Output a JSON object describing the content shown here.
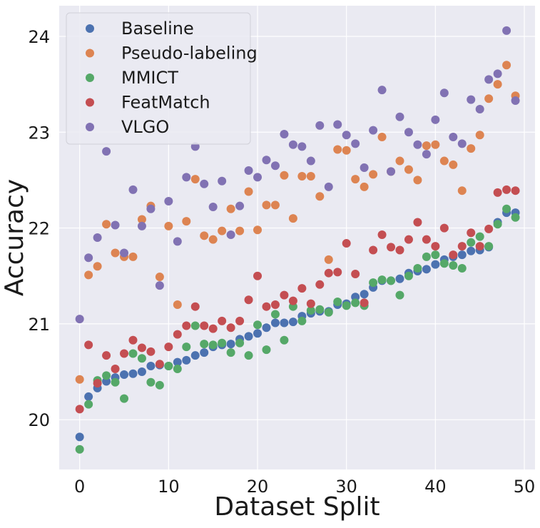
{
  "chart_data": {
    "type": "scatter",
    "xlabel": "Dataset Split",
    "ylabel": "Accuracy",
    "xlim": [
      -2.3,
      51.2
    ],
    "ylim": [
      19.48,
      24.32
    ],
    "xticks": [
      0,
      10,
      20,
      30,
      40,
      50
    ],
    "yticks": [
      20,
      21,
      22,
      23,
      24
    ],
    "grid": true,
    "legend_position": "top-left",
    "series": [
      {
        "name": "Baseline",
        "color": "#4c72b0",
        "x": [
          0,
          1,
          2,
          3,
          4,
          5,
          6,
          7,
          8,
          9,
          10,
          11,
          12,
          13,
          14,
          15,
          16,
          17,
          18,
          19,
          20,
          21,
          22,
          23,
          24,
          25,
          26,
          27,
          28,
          29,
          30,
          31,
          32,
          33,
          34,
          35,
          36,
          37,
          38,
          39,
          40,
          41,
          42,
          43,
          44,
          45,
          46,
          47,
          48,
          49
        ],
        "y": [
          19.82,
          20.24,
          20.33,
          20.4,
          20.44,
          20.47,
          20.48,
          20.5,
          20.56,
          20.57,
          20.56,
          20.6,
          20.62,
          20.67,
          20.7,
          20.76,
          20.78,
          20.79,
          20.84,
          20.87,
          20.9,
          20.96,
          21.01,
          21.01,
          21.02,
          21.08,
          21.11,
          21.13,
          21.13,
          21.2,
          21.21,
          21.28,
          21.31,
          21.38,
          21.45,
          21.45,
          21.47,
          21.53,
          21.55,
          21.57,
          21.62,
          21.67,
          21.7,
          21.72,
          21.76,
          21.77,
          21.8,
          22.06,
          22.16,
          22.16
        ]
      },
      {
        "name": "Pseudo-labeling",
        "color": "#dd8452",
        "x": [
          0,
          1,
          2,
          3,
          4,
          5,
          6,
          7,
          8,
          9,
          10,
          11,
          12,
          13,
          14,
          15,
          16,
          17,
          18,
          19,
          20,
          21,
          22,
          23,
          24,
          25,
          26,
          27,
          28,
          29,
          30,
          31,
          32,
          33,
          34,
          35,
          36,
          37,
          38,
          39,
          40,
          41,
          42,
          43,
          44,
          45,
          46,
          47,
          48,
          49
        ],
        "y": [
          20.42,
          21.51,
          21.6,
          22.04,
          21.74,
          21.7,
          21.7,
          22.09,
          22.23,
          21.49,
          22.02,
          21.2,
          22.07,
          22.51,
          21.92,
          21.88,
          21.97,
          22.2,
          21.97,
          22.38,
          21.98,
          22.24,
          22.24,
          22.55,
          22.1,
          22.54,
          22.54,
          22.33,
          21.67,
          22.82,
          22.81,
          22.51,
          22.43,
          22.56,
          22.95,
          22.59,
          22.7,
          22.61,
          22.5,
          22.86,
          22.87,
          22.7,
          22.66,
          22.39,
          22.83,
          22.97,
          23.35,
          23.5,
          23.7,
          23.38
        ]
      },
      {
        "name": "MMICT",
        "color": "#55a868",
        "x": [
          0,
          1,
          2,
          3,
          4,
          5,
          6,
          7,
          8,
          9,
          10,
          11,
          12,
          13,
          14,
          15,
          16,
          17,
          18,
          19,
          20,
          21,
          22,
          23,
          24,
          25,
          26,
          27,
          28,
          29,
          30,
          31,
          32,
          33,
          34,
          35,
          36,
          37,
          38,
          39,
          40,
          41,
          42,
          43,
          44,
          45,
          46,
          47,
          48,
          49
        ],
        "y": [
          19.69,
          20.16,
          20.41,
          20.46,
          20.39,
          20.22,
          20.69,
          20.64,
          20.39,
          20.36,
          20.56,
          20.53,
          20.76,
          20.98,
          20.79,
          20.78,
          20.8,
          20.7,
          20.8,
          20.67,
          20.99,
          20.73,
          21.1,
          20.83,
          21.18,
          21.03,
          21.14,
          21.15,
          21.12,
          21.23,
          21.19,
          21.22,
          21.19,
          21.43,
          21.46,
          21.45,
          21.3,
          21.5,
          21.58,
          21.7,
          21.72,
          21.63,
          21.61,
          21.58,
          21.85,
          21.91,
          21.81,
          22.04,
          22.2,
          22.11
        ]
      },
      {
        "name": "FeatMatch",
        "color": "#c44e52",
        "x": [
          0,
          1,
          2,
          3,
          4,
          5,
          6,
          7,
          8,
          9,
          10,
          11,
          12,
          13,
          14,
          15,
          16,
          17,
          18,
          19,
          20,
          21,
          22,
          23,
          24,
          25,
          26,
          27,
          28,
          29,
          30,
          31,
          32,
          33,
          34,
          35,
          36,
          37,
          38,
          39,
          40,
          41,
          42,
          43,
          44,
          45,
          46,
          47,
          48,
          49
        ],
        "y": [
          20.11,
          20.78,
          20.38,
          20.67,
          20.53,
          20.69,
          20.83,
          20.75,
          20.71,
          20.58,
          20.76,
          20.89,
          20.98,
          21.18,
          20.98,
          20.95,
          21.03,
          20.96,
          21.03,
          21.25,
          21.5,
          21.18,
          21.2,
          21.3,
          21.24,
          21.37,
          21.21,
          21.41,
          21.53,
          21.54,
          21.84,
          21.52,
          21.22,
          21.77,
          21.93,
          21.8,
          21.77,
          21.88,
          22.06,
          21.88,
          21.81,
          22.0,
          21.72,
          21.81,
          21.95,
          21.81,
          21.99,
          22.37,
          22.4,
          22.39
        ]
      },
      {
        "name": "VLGO",
        "color": "#8172b3",
        "x": [
          0,
          1,
          2,
          3,
          4,
          5,
          6,
          7,
          8,
          9,
          10,
          11,
          12,
          13,
          14,
          15,
          16,
          17,
          18,
          19,
          20,
          21,
          22,
          23,
          24,
          25,
          26,
          27,
          28,
          29,
          30,
          31,
          32,
          33,
          34,
          35,
          36,
          37,
          38,
          39,
          40,
          41,
          42,
          43,
          44,
          45,
          46,
          47,
          48,
          49
        ],
        "y": [
          21.05,
          21.69,
          21.9,
          22.8,
          22.03,
          21.74,
          22.4,
          22.02,
          22.2,
          21.4,
          22.28,
          21.86,
          22.53,
          22.85,
          22.46,
          22.22,
          22.49,
          21.93,
          22.23,
          22.6,
          22.53,
          22.71,
          22.65,
          22.98,
          22.87,
          22.85,
          22.7,
          23.07,
          22.43,
          23.08,
          22.97,
          22.88,
          22.63,
          23.02,
          23.44,
          22.59,
          23.16,
          23.0,
          22.87,
          22.77,
          23.13,
          23.41,
          22.95,
          22.88,
          23.34,
          23.24,
          23.55,
          23.61,
          24.06,
          23.33
        ]
      }
    ]
  }
}
